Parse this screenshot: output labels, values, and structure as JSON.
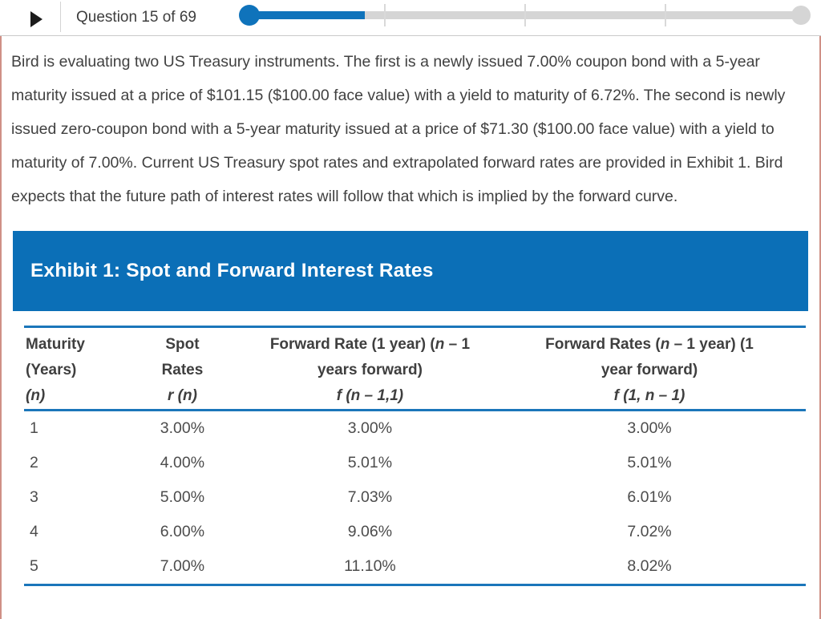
{
  "header": {
    "question_label": "Question 15 of 69",
    "progress": {
      "current": 15,
      "total": 69,
      "percent_complete": 21.4,
      "tick_positions_percent": [
        25,
        50,
        75
      ]
    },
    "icons": {
      "play_icon": "right-pointing-triangle"
    }
  },
  "question": {
    "text": "Bird is evaluating two US Treasury instruments. The first is a newly issued 7.00% coupon bond with a 5-year maturity issued at a price of $101.15 ($100.00 face value) with a yield to maturity of 6.72%. The second is newly issued zero-coupon bond with a 5-year maturity issued at a price of $71.30 ($100.00 face value) with a yield to maturity of 7.00%. Current US Treasury spot rates and extrapolated forward rates are provided in Exhibit 1. Bird expects that the future path of interest rates will follow that which is implied by the forward curve."
  },
  "exhibit": {
    "title": "Exhibit 1: Spot and Forward Interest Rates"
  },
  "exhibit_table": {
    "headers": [
      {
        "align": "left",
        "lines": [
          [
            {
              "t": "Maturity"
            }
          ],
          [
            {
              "t": "(Years)"
            }
          ],
          [
            {
              "t": "(n)",
              "i": true
            }
          ]
        ]
      },
      {
        "align": "center",
        "lines": [
          [
            {
              "t": "Spot"
            }
          ],
          [
            {
              "t": "Rates"
            }
          ],
          [
            {
              "t": "r (n)",
              "i": true
            }
          ]
        ]
      },
      {
        "align": "center",
        "lines": [
          [
            {
              "t": "Forward Rate (1 year) ("
            },
            {
              "t": "n",
              "i": true
            },
            {
              "t": " – 1"
            }
          ],
          [
            {
              "t": "years forward)"
            }
          ],
          [
            {
              "t": "f (n – 1,1)",
              "i": true
            }
          ]
        ]
      },
      {
        "align": "center",
        "lines": [
          [
            {
              "t": "Forward Rates ("
            },
            {
              "t": "n",
              "i": true
            },
            {
              "t": " – 1 year) (1"
            }
          ],
          [
            {
              "t": "year forward)"
            }
          ],
          [
            {
              "t": "f (1, n – 1)",
              "i": true
            }
          ]
        ]
      }
    ],
    "rows": [
      [
        "1",
        "3.00%",
        "3.00%",
        "3.00%"
      ],
      [
        "2",
        "4.00%",
        "5.01%",
        "5.01%"
      ],
      [
        "3",
        "5.00%",
        "7.03%",
        "6.01%"
      ],
      [
        "4",
        "6.00%",
        "9.06%",
        "7.02%"
      ],
      [
        "5",
        "7.00%",
        "11.10%",
        "8.02%"
      ]
    ]
  },
  "colors": {
    "banner_blue": "#0b6fb7",
    "table_rule_blue": "#1b76ba",
    "progress_blue": "#0f73bb",
    "track_gray": "#d5d5d5",
    "panel_border_salmon": "#cf9086",
    "body_text": "#414141",
    "header_border_gray": "#c9c9c9"
  }
}
